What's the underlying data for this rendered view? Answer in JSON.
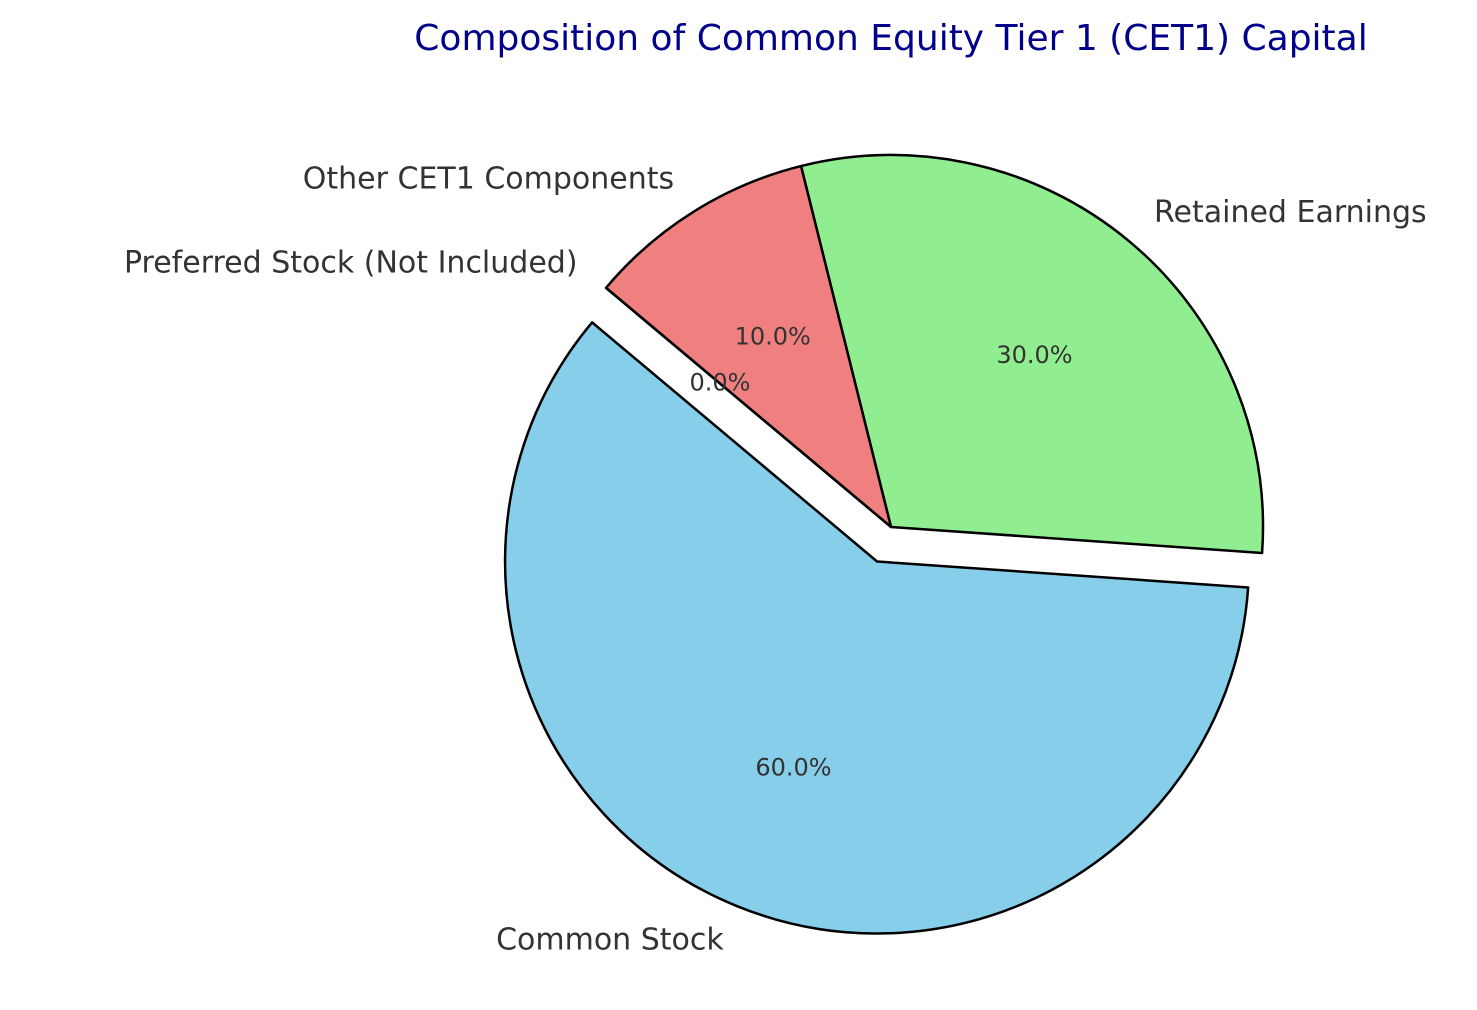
{
  "chart_data": {
    "type": "pie",
    "title": "Composition of Common Equity Tier 1 (CET1) Capital",
    "title_color": "#00008b",
    "categories": [
      "Common Stock",
      "Retained Earnings",
      "Other CET1 Components",
      "Preferred Stock (Not Included)"
    ],
    "values": [
      60,
      30,
      10,
      0
    ],
    "percent_labels": [
      "60.0%",
      "30.0%",
      "10.0%",
      "0.0%"
    ],
    "colors": [
      "#87ceeb",
      "#90ee90",
      "#f08080",
      "#ffd700"
    ],
    "explode": [
      0.1,
      0,
      0,
      0
    ],
    "start_angle_deg": 140,
    "edge_color": "#000000"
  }
}
